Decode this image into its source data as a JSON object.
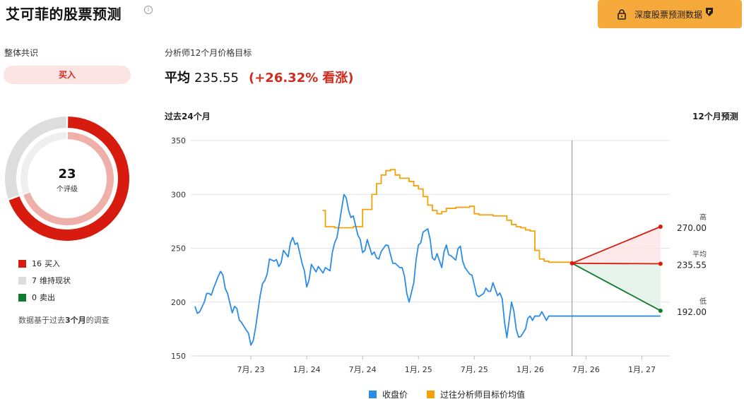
{
  "header": {
    "title": "艾可菲的股票预测",
    "info_icon": "info-icon",
    "premium_label": "深度股票预测数据",
    "premium_icon": "lock-icon",
    "brand_icon": "brand-icon",
    "premium_color": "#f5a93a"
  },
  "consensus": {
    "label": "整体共识",
    "rating": "买入",
    "ratings_count": "23",
    "ratings_label": "个评级",
    "breakdown": [
      {
        "count": 16,
        "count_text": "16",
        "label": "买入",
        "color": "#d71c0f"
      },
      {
        "count": 7,
        "count_text": "7",
        "label": "维持现状",
        "color": "#dddddd"
      },
      {
        "count": 0,
        "count_text": "0",
        "label": "卖出",
        "color": "#0f7b2e"
      }
    ],
    "footnote_prefix": "数据基于过去",
    "footnote_bold": "3个月",
    "footnote_suffix": "的调查"
  },
  "target": {
    "title": "分析师12个月价格目标",
    "avg_label": "平均",
    "avg_value": "235.55",
    "change": "(+26.32%",
    "change_word": "看涨)"
  },
  "chart_data": {
    "type": "line",
    "past_label": "过去24个月",
    "future_label": "12个月预测",
    "ylim": [
      150,
      350
    ],
    "yticks": [
      150,
      200,
      250,
      300,
      350
    ],
    "x_ticks": [
      "7月, 23",
      "1月, 24",
      "7月, 24",
      "1月, 25",
      "7月, 25",
      "1月, 26",
      "7月, 26",
      "1月, 27"
    ],
    "x_tick_months": [
      6,
      12,
      18,
      24,
      30,
      36,
      42,
      48
    ],
    "x_range_months": [
      0,
      51
    ],
    "divider_month": 40.5,
    "grid": true,
    "series": [
      {
        "name": "收盘价",
        "color": "#2b8ce8",
        "x_months": [
          0,
          0.5,
          1,
          1.5,
          2,
          2.5,
          3,
          3.5,
          4,
          4.5,
          5,
          5.5,
          6,
          6.5,
          7,
          7.5,
          8,
          8.5,
          9,
          9.5,
          10,
          10.5,
          11,
          11.5,
          12,
          12.5,
          13,
          13.5,
          14,
          14.5,
          15,
          15.5,
          16,
          16.5,
          17,
          17.5,
          18,
          18.5,
          19,
          19.5,
          20,
          20.5,
          21,
          21.5,
          22,
          22.5,
          23,
          23.5,
          24,
          24.5,
          25,
          25.5,
          26,
          26.5,
          27,
          27.5,
          28,
          28.5,
          29,
          29.5,
          30,
          30.5,
          31,
          31.5,
          32,
          32.5,
          33,
          33.5,
          34,
          34.5,
          35,
          35.5,
          36,
          36.5,
          37,
          37.5,
          38,
          38.5,
          39,
          39.5,
          40,
          40.5
        ],
        "y": [
          195,
          191,
          199,
          206,
          212,
          222,
          223,
          208,
          190,
          196,
          182,
          175,
          166,
          178,
          205,
          218,
          238,
          236,
          233,
          246,
          242,
          258,
          252,
          235,
          218,
          233,
          226,
          229,
          231,
          228,
          254,
          271,
          289,
          284,
          277,
          263,
          248,
          256,
          244,
          243,
          247,
          252,
          244,
          236,
          232,
          224,
          208,
          202,
          238,
          255,
          266,
          241,
          245,
          232,
          243,
          243,
          239,
          250,
          232,
          226,
          216,
          205,
          208,
          209,
          217,
          207,
          203,
          181,
          190,
          175,
          168,
          173,
          178,
          183,
          186,
          188,
          188,
          188,
          188,
          188,
          188,
          188
        ],
        "y_full": [
          196,
          191,
          200,
          208,
          213,
          224,
          225,
          208,
          190,
          194,
          181,
          174,
          160,
          176,
          206,
          220,
          240,
          238,
          233,
          248,
          242,
          260,
          255,
          236,
          214,
          235,
          228,
          230,
          232,
          229,
          255,
          273,
          300,
          285,
          280,
          262,
          246,
          258,
          244,
          241,
          247,
          253,
          244,
          236,
          232,
          224,
          200,
          218,
          253,
          265,
          268,
          241,
          245,
          232,
          253,
          243,
          239,
          252,
          232,
          226,
          216,
          205,
          208,
          210,
          218,
          206,
          203,
          167,
          200,
          175,
          168,
          175,
          187,
          187,
          187,
          187,
          187,
          187,
          187,
          187,
          187,
          187
        ]
      },
      {
        "name": "过往分析师目标价均值",
        "color": "#f5a20a",
        "x_months": [
          13.7,
          14,
          15,
          16,
          17,
          18,
          19,
          19.5,
          20,
          20.5,
          21,
          21.5,
          22,
          22.5,
          23,
          23.5,
          24,
          24.5,
          25,
          25.5,
          26,
          26.5,
          27,
          27.5,
          28,
          28.5,
          29,
          29.5,
          30,
          30.5,
          31,
          31.5,
          32,
          32.5,
          33,
          33.5,
          34,
          34.5,
          35,
          35.5,
          36,
          36.5,
          37,
          37.5,
          38,
          38.5,
          39,
          39.5,
          40,
          40.5
        ],
        "y": [
          285,
          270,
          269,
          269,
          270,
          286,
          300,
          310,
          318,
          322,
          323,
          318,
          315,
          315,
          312,
          308,
          305,
          298,
          290,
          285,
          282,
          284,
          287,
          287,
          288,
          288,
          288,
          289,
          282,
          281,
          281,
          281,
          280,
          280,
          280,
          276,
          272,
          270,
          269,
          267,
          266,
          248,
          240,
          238,
          237,
          237,
          237,
          237,
          237,
          236
        ]
      }
    ],
    "forecast": {
      "start_month": 40.5,
      "end_month": 50,
      "start_value": 236,
      "high": 270.0,
      "average": 235.55,
      "low": 192.0,
      "labels": {
        "high": "高",
        "average": "平均",
        "low": "低"
      },
      "value_text": {
        "high": "270.00",
        "average": "235.55",
        "low": "192.00"
      },
      "colors": {
        "high": "#d71c0f",
        "average": "#d71c0f",
        "low": "#0f7b2e"
      }
    }
  }
}
